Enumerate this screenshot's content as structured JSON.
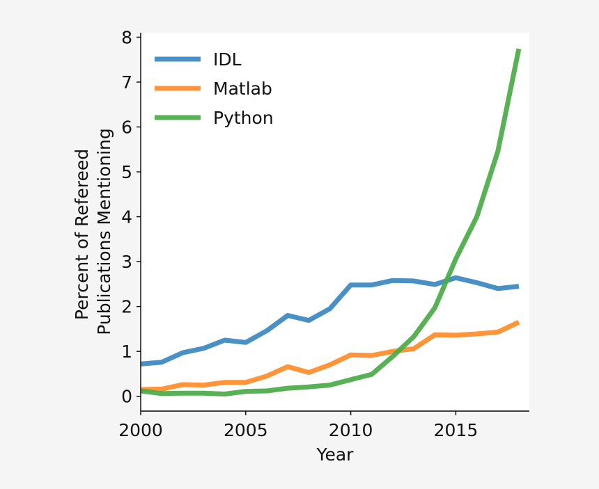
{
  "chart_data": {
    "type": "line",
    "title": "",
    "xlabel": "Year",
    "ylabel": [
      "Percent of Refereed",
      "Publications Mentioning"
    ],
    "xlim": [
      2000,
      2018.5
    ],
    "ylim": [
      -0.33,
      8.1
    ],
    "xticks": [
      2000,
      2005,
      2010,
      2015
    ],
    "yticks": [
      0,
      1,
      2,
      3,
      4,
      5,
      6,
      7,
      8
    ],
    "grid": false,
    "legend_position": "top-left",
    "x": [
      2000,
      2001,
      2002,
      2003,
      2004,
      2005,
      2006,
      2007,
      2008,
      2009,
      2010,
      2011,
      2012,
      2013,
      2014,
      2015,
      2016,
      2017,
      2018
    ],
    "series": [
      {
        "name": "IDL",
        "color": "#3a87c0",
        "values": [
          0.72,
          0.76,
          0.97,
          1.07,
          1.25,
          1.2,
          1.46,
          1.8,
          1.69,
          1.95,
          2.48,
          2.48,
          2.58,
          2.57,
          2.49,
          2.64,
          2.53,
          2.4,
          2.45
        ]
      },
      {
        "name": "Matlab",
        "color": "#ff8c27",
        "values": [
          0.15,
          0.16,
          0.26,
          0.25,
          0.31,
          0.31,
          0.45,
          0.66,
          0.53,
          0.7,
          0.92,
          0.91,
          1.0,
          1.06,
          1.37,
          1.36,
          1.39,
          1.43,
          1.65
        ]
      },
      {
        "name": "Python",
        "color": "#4aab47",
        "values": [
          0.12,
          0.06,
          0.07,
          0.07,
          0.05,
          0.11,
          0.12,
          0.18,
          0.21,
          0.25,
          0.37,
          0.49,
          0.89,
          1.33,
          1.97,
          3.06,
          4.0,
          5.46,
          7.74
        ]
      }
    ]
  }
}
